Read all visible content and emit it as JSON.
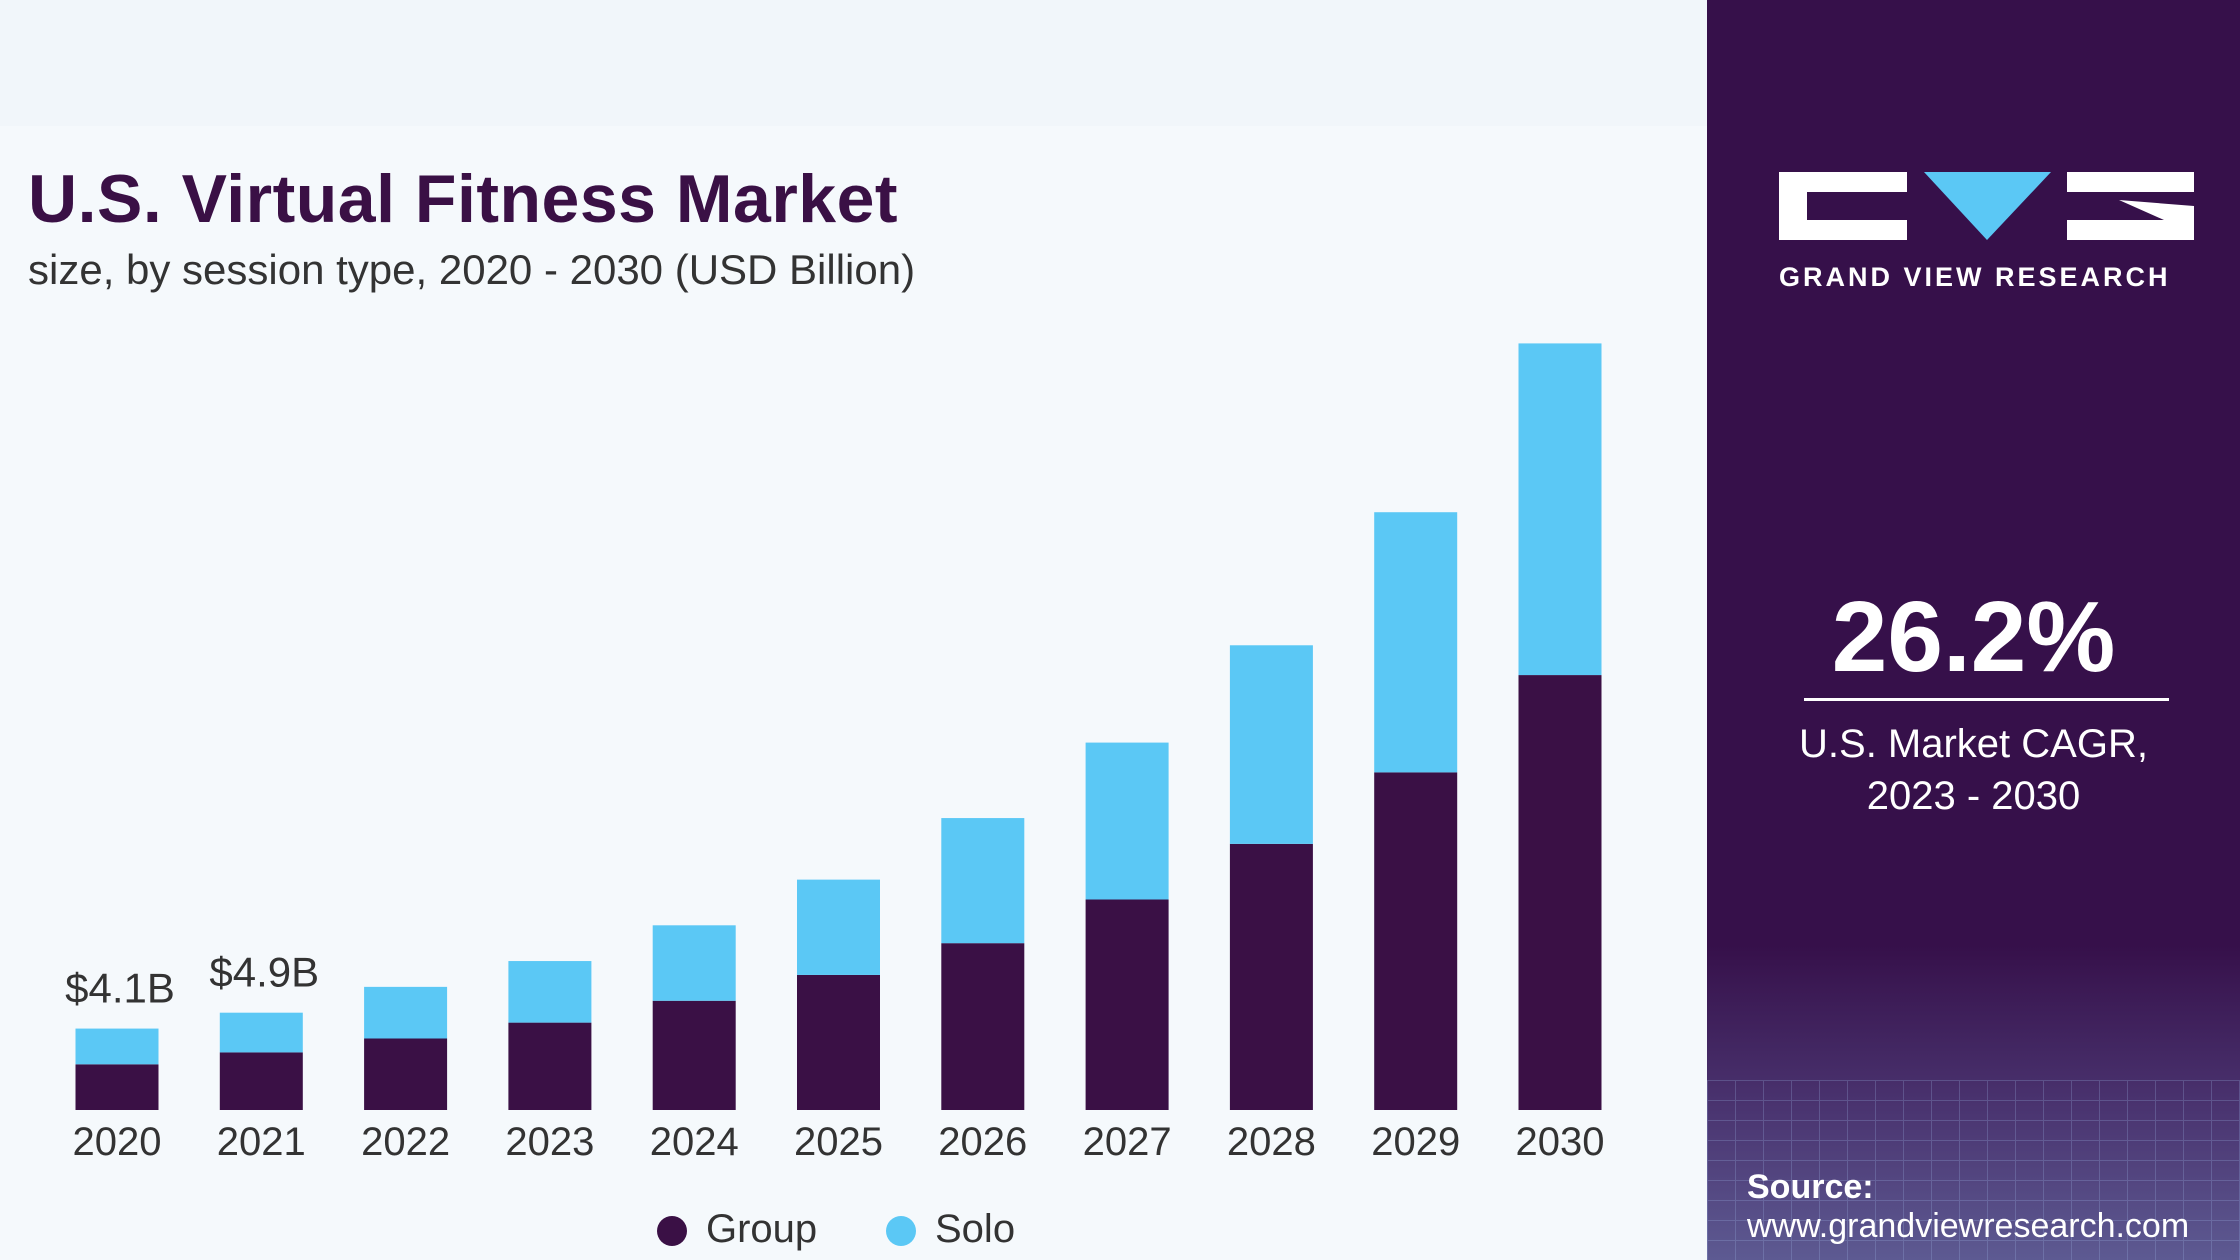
{
  "title": "U.S. Virtual Fitness Market",
  "subtitle": "size, by session type, 2020 - 2030 (USD Billion)",
  "brand": {
    "name": "GRAND VIEW RESEARCH",
    "accent": "#5bc8f5",
    "dark": "#3a1045"
  },
  "cagr": {
    "value": "26.2%",
    "label1": "U.S. Market CAGR,",
    "label2": "2023 - 2030"
  },
  "source": {
    "label": "Source:",
    "url": "www.grandviewresearch.com"
  },
  "chart_data": {
    "type": "bar",
    "stacked": true,
    "categories": [
      "2020",
      "2021",
      "2022",
      "2023",
      "2024",
      "2025",
      "2026",
      "2027",
      "2028",
      "2029",
      "2030"
    ],
    "series": [
      {
        "name": "Group",
        "color": "#3a1045",
        "values": [
          2.3,
          2.9,
          3.6,
          4.4,
          5.5,
          6.8,
          8.4,
          10.6,
          13.4,
          17.0,
          21.9
        ]
      },
      {
        "name": "Solo",
        "color": "#5bc8f5",
        "values": [
          1.8,
          2.0,
          2.6,
          3.1,
          3.8,
          4.8,
          6.3,
          7.9,
          10.0,
          13.1,
          16.7
        ]
      }
    ],
    "data_labels": [
      {
        "category": "2020",
        "text": "$4.1B"
      },
      {
        "category": "2021",
        "text": "$4.9B"
      }
    ],
    "legend": "bottom",
    "grid": false,
    "y_axis_visible": false
  }
}
